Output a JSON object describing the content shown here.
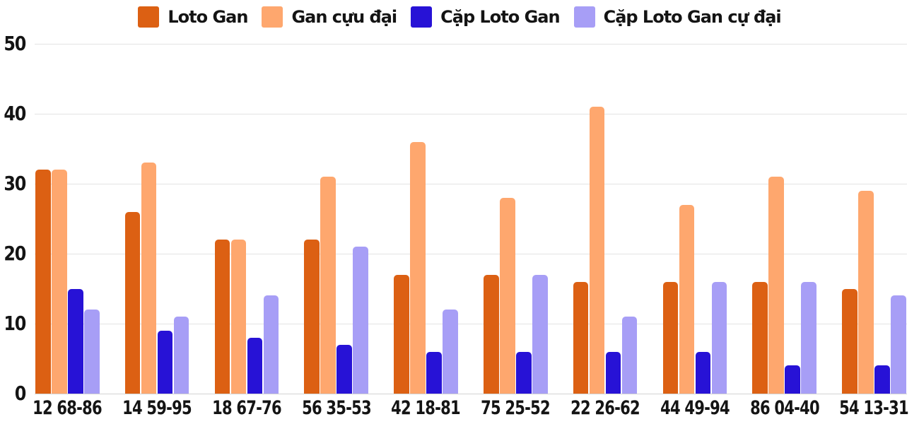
{
  "chart_data": {
    "type": "bar",
    "title": "",
    "xlabel": "",
    "ylabel": "",
    "categories": [
      "12 68-86",
      "14 59-95",
      "18 67-76",
      "56 35-53",
      "42 18-81",
      "75 25-52",
      "22 26-62",
      "44 49-94",
      "86 04-40",
      "54 13-31"
    ],
    "series": [
      {
        "name": "Loto Gan",
        "color": "#dc6013",
        "values": [
          32,
          26,
          22,
          22,
          17,
          17,
          16,
          16,
          16,
          15
        ]
      },
      {
        "name": "Gan cựu đại",
        "color": "#fea76e",
        "values": [
          32,
          33,
          22,
          31,
          36,
          28,
          41,
          27,
          31,
          29
        ]
      },
      {
        "name": "Cặp Loto Gan",
        "color": "#2712d6",
        "values": [
          15,
          9,
          8,
          7,
          6,
          6,
          6,
          6,
          4,
          4
        ]
      },
      {
        "name": "Cặp Loto Gan cự đại",
        "color": "#a79ef6",
        "values": [
          12,
          11,
          14,
          21,
          12,
          17,
          11,
          16,
          16,
          14
        ]
      }
    ],
    "ylim": [
      0,
      50
    ],
    "yticks": [
      0,
      10,
      20,
      30,
      40,
      50
    ],
    "grid": true,
    "legend_position": "top"
  },
  "colors": {
    "background": "#ffffff",
    "gridline": "#e3e3e3",
    "baseline": "#d2d2d2",
    "axis_text": "#141414"
  }
}
